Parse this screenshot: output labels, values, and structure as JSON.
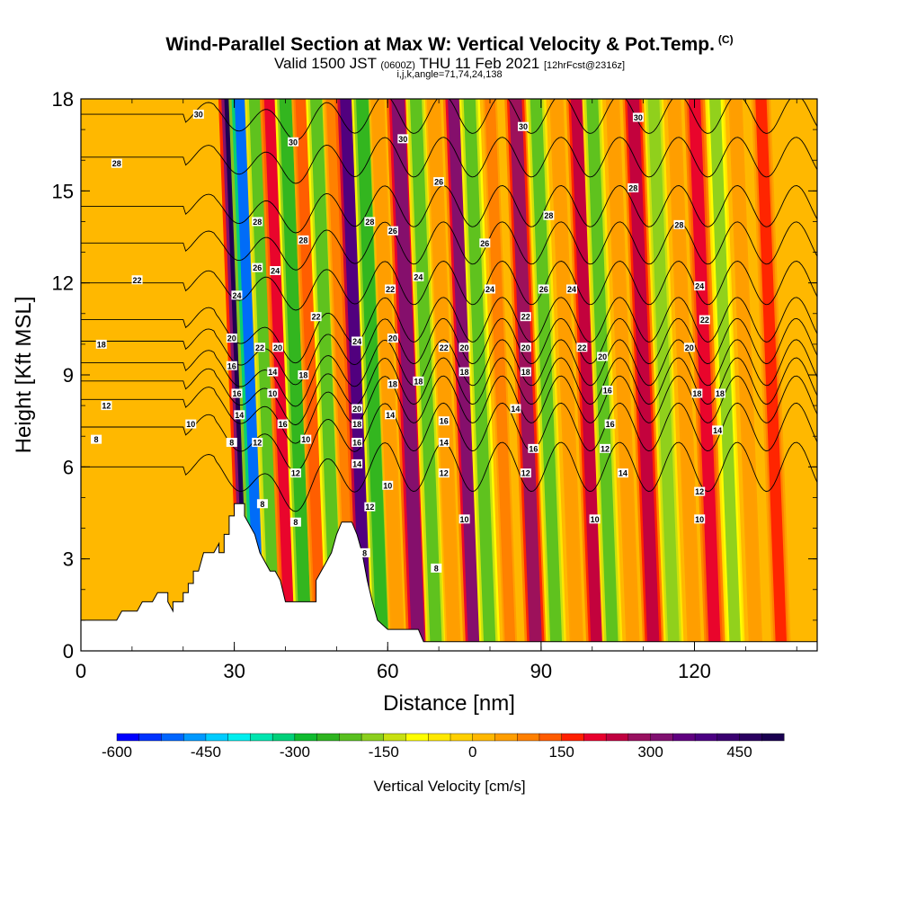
{
  "titles": {
    "main": "Wind-Parallel Section at Max W: Vertical Velocity & Pot.Temp.",
    "main_tag": "(C)",
    "valid_a": "Valid 1500 JST",
    "valid_b": "(0600Z)",
    "valid_c": "THU 11 Feb 2021",
    "valid_d": "[12hrFcst@2316z]",
    "indices": "i,j,k,angle=71,74,24,138"
  },
  "chart_data": {
    "type": "heatmap",
    "xlabel": "Distance [nm]",
    "ylabel": "Height [Kft MSL]",
    "xlim": [
      0,
      144
    ],
    "ylim": [
      0,
      18
    ],
    "x_ticks": [
      0,
      30,
      60,
      90,
      120
    ],
    "y_ticks": [
      0,
      3,
      6,
      9,
      12,
      15,
      18
    ],
    "colorbar": {
      "title": "Vertical Velocity [cm/s]",
      "min": -600,
      "max": 525,
      "step": 37.5,
      "tick_values": [
        -600,
        -450,
        -300,
        -150,
        0,
        150,
        300,
        450
      ],
      "tick_labels": [
        "-600",
        "-450",
        "-300",
        "-150",
        "0",
        "150",
        "300",
        "450"
      ],
      "colors": [
        "#0000ff",
        "#0033ff",
        "#0066ff",
        "#0099ff",
        "#00ccff",
        "#00eeee",
        "#00e5b0",
        "#00d07a",
        "#10bb30",
        "#2eb420",
        "#59c020",
        "#8ccf1e",
        "#c8e010",
        "#ffff00",
        "#ffe800",
        "#ffd000",
        "#ffb800",
        "#ff9e00",
        "#ff8000",
        "#ff5c00",
        "#ff2000",
        "#e8002e",
        "#c00040",
        "#981060",
        "#801070",
        "#600080",
        "#4b0082",
        "#3a0070",
        "#2a0060",
        "#1a0050"
      ]
    },
    "terrain_profile": [
      [
        0,
        1.0
      ],
      [
        7,
        1.0
      ],
      [
        8,
        1.3
      ],
      [
        11,
        1.3
      ],
      [
        12,
        1.6
      ],
      [
        14,
        1.6
      ],
      [
        15,
        1.9
      ],
      [
        17,
        1.9
      ],
      [
        17,
        1.6
      ],
      [
        18,
        1.3
      ],
      [
        18,
        1.6
      ],
      [
        20,
        1.6
      ],
      [
        20,
        1.9
      ],
      [
        21,
        1.9
      ],
      [
        21,
        2.2
      ],
      [
        22,
        2.2
      ],
      [
        22,
        2.6
      ],
      [
        23,
        2.6
      ],
      [
        24,
        3.2
      ],
      [
        26,
        3.2
      ],
      [
        27,
        3.5
      ],
      [
        27,
        3.2
      ],
      [
        28,
        3.2
      ],
      [
        28,
        3.8
      ],
      [
        29,
        3.8
      ],
      [
        29,
        4.4
      ],
      [
        30,
        4.4
      ],
      [
        30,
        4.8
      ],
      [
        32,
        4.8
      ],
      [
        32,
        4.4
      ],
      [
        34,
        3.8
      ],
      [
        35,
        3.2
      ],
      [
        36,
        2.9
      ],
      [
        37,
        2.6
      ],
      [
        38,
        2.6
      ],
      [
        39,
        2.3
      ],
      [
        40,
        1.6
      ],
      [
        46,
        1.6
      ],
      [
        46,
        2.3
      ],
      [
        47,
        2.6
      ],
      [
        48,
        2.9
      ],
      [
        49,
        3.2
      ],
      [
        50,
        3.8
      ],
      [
        51,
        4.2
      ],
      [
        53,
        4.2
      ],
      [
        54,
        3.8
      ],
      [
        55,
        3.2
      ],
      [
        56,
        2.3
      ],
      [
        57,
        1.6
      ],
      [
        58,
        1.0
      ],
      [
        60,
        0.7
      ],
      [
        66,
        0.7
      ],
      [
        67,
        0.3
      ],
      [
        144,
        0.3
      ]
    ],
    "vertical_velocity_bands": [
      {
        "x": 33.5,
        "w": 500
      },
      {
        "x": 35.5,
        "w": -500
      },
      {
        "x": 38,
        "w": -200
      },
      {
        "x": 41,
        "w": 220
      },
      {
        "x": 44,
        "w": -260
      },
      {
        "x": 47,
        "w": 120
      },
      {
        "x": 50,
        "w": -220
      },
      {
        "x": 53,
        "w": 80
      },
      {
        "x": 56,
        "w": 380
      },
      {
        "x": 59,
        "w": -250
      },
      {
        "x": 62,
        "w": 60
      },
      {
        "x": 66,
        "w": 330
      },
      {
        "x": 69.5,
        "w": -210
      },
      {
        "x": 73,
        "w": 60
      },
      {
        "x": 77,
        "w": 300
      },
      {
        "x": 80,
        "w": -220
      },
      {
        "x": 84,
        "w": 80
      },
      {
        "x": 89,
        "w": 280
      },
      {
        "x": 93,
        "w": -200
      },
      {
        "x": 97,
        "w": 60
      },
      {
        "x": 101,
        "w": 260
      },
      {
        "x": 104,
        "w": -200
      },
      {
        "x": 108,
        "w": 60
      },
      {
        "x": 112,
        "w": 240
      },
      {
        "x": 116,
        "w": -180
      },
      {
        "x": 120,
        "w": 60
      },
      {
        "x": 124,
        "w": 220
      },
      {
        "x": 128,
        "w": -160
      },
      {
        "x": 132,
        "w": 60
      },
      {
        "x": 137,
        "w": 150
      }
    ],
    "theta_contours": [
      {
        "level": 8,
        "y": 6.0
      },
      {
        "level": 10,
        "y": 7.3
      },
      {
        "level": 12,
        "y": 8.2
      },
      {
        "level": 14,
        "y": 8.8
      },
      {
        "level": 16,
        "y": 9.4
      },
      {
        "level": 18,
        "y": 10.1
      },
      {
        "level": 20,
        "y": 10.8
      },
      {
        "level": 22,
        "y": 12.0
      },
      {
        "level": 24,
        "y": 13.3
      },
      {
        "level": 26,
        "y": 14.5
      },
      {
        "level": 28,
        "y": 16.1
      },
      {
        "level": 30,
        "y": 17.5
      }
    ],
    "contour_labels": [
      {
        "text": "30",
        "x": 23,
        "y": 17.5
      },
      {
        "text": "28",
        "x": 7,
        "y": 15.9
      },
      {
        "text": "22",
        "x": 11,
        "y": 12.1
      },
      {
        "text": "18",
        "x": 4,
        "y": 10.0
      },
      {
        "text": "12",
        "x": 5,
        "y": 8.0
      },
      {
        "text": "8",
        "x": 3,
        "y": 6.9
      },
      {
        "text": "10",
        "x": 21.5,
        "y": 7.4
      },
      {
        "text": "8",
        "x": 29.5,
        "y": 6.8
      },
      {
        "text": "24",
        "x": 30.5,
        "y": 11.6
      },
      {
        "text": "20",
        "x": 29.5,
        "y": 10.2
      },
      {
        "text": "16",
        "x": 29.5,
        "y": 9.3
      },
      {
        "text": "16",
        "x": 30.5,
        "y": 8.4
      },
      {
        "text": "14",
        "x": 31,
        "y": 7.7
      },
      {
        "text": "28",
        "x": 34.5,
        "y": 14.0
      },
      {
        "text": "26",
        "x": 34.5,
        "y": 12.5
      },
      {
        "text": "22",
        "x": 35,
        "y": 9.9
      },
      {
        "text": "12",
        "x": 34.5,
        "y": 6.8
      },
      {
        "text": "8",
        "x": 35.5,
        "y": 4.8
      },
      {
        "text": "24",
        "x": 38,
        "y": 12.4
      },
      {
        "text": "20",
        "x": 38.5,
        "y": 9.9
      },
      {
        "text": "14",
        "x": 37.5,
        "y": 9.1
      },
      {
        "text": "10",
        "x": 37.5,
        "y": 8.4
      },
      {
        "text": "16",
        "x": 39.5,
        "y": 7.4
      },
      {
        "text": "30",
        "x": 41.5,
        "y": 16.6
      },
      {
        "text": "28",
        "x": 43.5,
        "y": 13.4
      },
      {
        "text": "18",
        "x": 43.5,
        "y": 9.0
      },
      {
        "text": "10",
        "x": 44,
        "y": 6.9
      },
      {
        "text": "12",
        "x": 42,
        "y": 5.8
      },
      {
        "text": "8",
        "x": 42,
        "y": 4.2
      },
      {
        "text": "22",
        "x": 46,
        "y": 10.9
      },
      {
        "text": "24",
        "x": 54,
        "y": 10.1
      },
      {
        "text": "20",
        "x": 54,
        "y": 7.9
      },
      {
        "text": "18",
        "x": 54,
        "y": 7.4
      },
      {
        "text": "16",
        "x": 54,
        "y": 6.8
      },
      {
        "text": "14",
        "x": 54,
        "y": 6.1
      },
      {
        "text": "8",
        "x": 55.5,
        "y": 3.2
      },
      {
        "text": "12",
        "x": 56.5,
        "y": 4.7
      },
      {
        "text": "28",
        "x": 56.5,
        "y": 14.0
      },
      {
        "text": "26",
        "x": 61,
        "y": 13.7
      },
      {
        "text": "22",
        "x": 60.5,
        "y": 11.8
      },
      {
        "text": "20",
        "x": 61,
        "y": 10.2
      },
      {
        "text": "18",
        "x": 61,
        "y": 8.7
      },
      {
        "text": "14",
        "x": 60.5,
        "y": 7.7
      },
      {
        "text": "10",
        "x": 60,
        "y": 5.4
      },
      {
        "text": "30",
        "x": 63,
        "y": 16.7
      },
      {
        "text": "24",
        "x": 66,
        "y": 12.2
      },
      {
        "text": "18",
        "x": 66,
        "y": 8.8
      },
      {
        "text": "8",
        "x": 69.5,
        "y": 2.7
      },
      {
        "text": "26",
        "x": 70,
        "y": 15.3
      },
      {
        "text": "22",
        "x": 71,
        "y": 9.9
      },
      {
        "text": "16",
        "x": 71,
        "y": 7.5
      },
      {
        "text": "14",
        "x": 71,
        "y": 6.8
      },
      {
        "text": "12",
        "x": 71,
        "y": 5.8
      },
      {
        "text": "20",
        "x": 75,
        "y": 9.9
      },
      {
        "text": "18",
        "x": 75,
        "y": 9.1
      },
      {
        "text": "10",
        "x": 75,
        "y": 4.3
      },
      {
        "text": "26",
        "x": 79,
        "y": 13.3
      },
      {
        "text": "24",
        "x": 80,
        "y": 11.8
      },
      {
        "text": "30",
        "x": 86.5,
        "y": 17.1
      },
      {
        "text": "22",
        "x": 87,
        "y": 10.9
      },
      {
        "text": "20",
        "x": 87,
        "y": 9.9
      },
      {
        "text": "18",
        "x": 87,
        "y": 9.1
      },
      {
        "text": "14",
        "x": 85,
        "y": 7.9
      },
      {
        "text": "12",
        "x": 87,
        "y": 5.8
      },
      {
        "text": "16",
        "x": 88.5,
        "y": 6.6
      },
      {
        "text": "28",
        "x": 91.5,
        "y": 14.2
      },
      {
        "text": "26",
        "x": 90.5,
        "y": 11.8
      },
      {
        "text": "24",
        "x": 96,
        "y": 11.8
      },
      {
        "text": "22",
        "x": 98,
        "y": 9.9
      },
      {
        "text": "20",
        "x": 102,
        "y": 9.6
      },
      {
        "text": "16",
        "x": 103,
        "y": 8.5
      },
      {
        "text": "16",
        "x": 103.5,
        "y": 7.4
      },
      {
        "text": "12",
        "x": 102.5,
        "y": 6.6
      },
      {
        "text": "14",
        "x": 106,
        "y": 5.8
      },
      {
        "text": "10",
        "x": 100.5,
        "y": 4.3
      },
      {
        "text": "30",
        "x": 109,
        "y": 17.4
      },
      {
        "text": "28",
        "x": 108,
        "y": 15.1
      },
      {
        "text": "28",
        "x": 117,
        "y": 13.9
      },
      {
        "text": "24",
        "x": 121,
        "y": 11.9
      },
      {
        "text": "22",
        "x": 122,
        "y": 10.8
      },
      {
        "text": "20",
        "x": 119,
        "y": 9.9
      },
      {
        "text": "18",
        "x": 120.5,
        "y": 8.4
      },
      {
        "text": "18",
        "x": 125,
        "y": 8.4
      },
      {
        "text": "14",
        "x": 124.5,
        "y": 7.2
      },
      {
        "text": "12",
        "x": 121,
        "y": 5.2
      },
      {
        "text": "10",
        "x": 121,
        "y": 4.3
      }
    ]
  }
}
